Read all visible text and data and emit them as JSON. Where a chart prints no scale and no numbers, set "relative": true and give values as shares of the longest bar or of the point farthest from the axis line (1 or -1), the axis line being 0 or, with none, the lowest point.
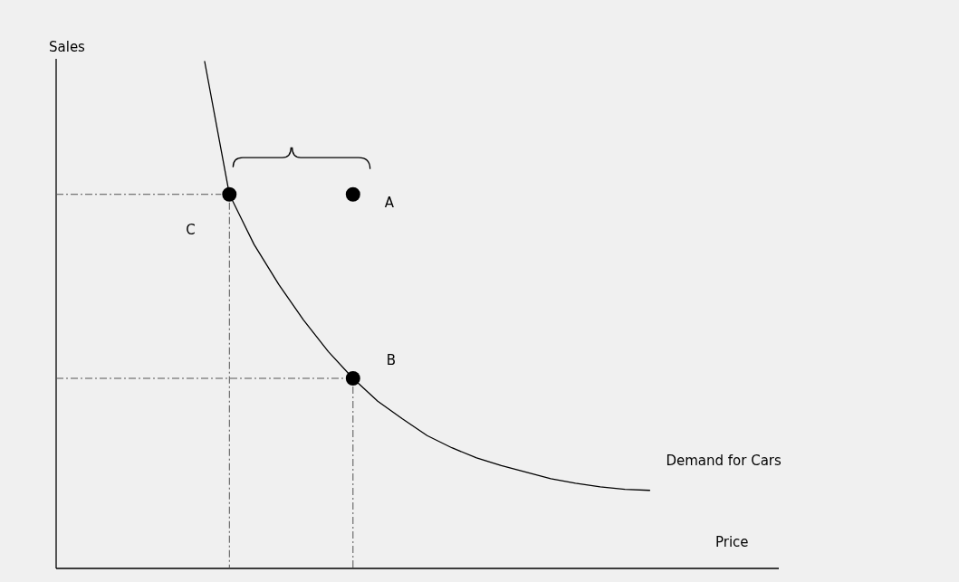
{
  "chart_data": {
    "type": "line",
    "relative": true,
    "xlabel": "Price",
    "categories": [
      null,
      null,
      null,
      null,
      null,
      null,
      null,
      null,
      null,
      null,
      null,
      null,
      null,
      null,
      null,
      null,
      null,
      null,
      null
    ],
    "series": [
      {
        "name": "Demand for Cars",
        "color": "#000000",
        "values": [
          1.0,
          0.738,
          0.639,
          0.56,
          0.49,
          0.428,
          0.375,
          0.33,
          0.295,
          0.262,
          0.238,
          0.218,
          0.203,
          0.19,
          0.177,
          0.168,
          0.161,
          0.156,
          0.154
        ]
      },
      {
        "color": "#000000",
        "marker": "circle",
        "line_style": "dashed",
        "values": [
          null,
          0.738,
          null,
          null,
          null,
          null,
          0.375,
          null,
          null,
          null,
          null,
          null,
          null,
          null,
          null,
          null,
          null,
          null,
          null
        ]
      },
      {
        "color": "#000000",
        "marker": "circle",
        "values": [
          null,
          null,
          null,
          null,
          null,
          null,
          0.738,
          null,
          null,
          null,
          null,
          null,
          null,
          null,
          null,
          null,
          null,
          null,
          null
        ]
      }
    ],
    "ref_lines": [
      {
        "axis": "y",
        "value": 0.375,
        "color": "#555555",
        "line_style": "dashed"
      }
    ],
    "annotations": [
      "C",
      "B",
      "A",
      "Sales"
    ]
  }
}
